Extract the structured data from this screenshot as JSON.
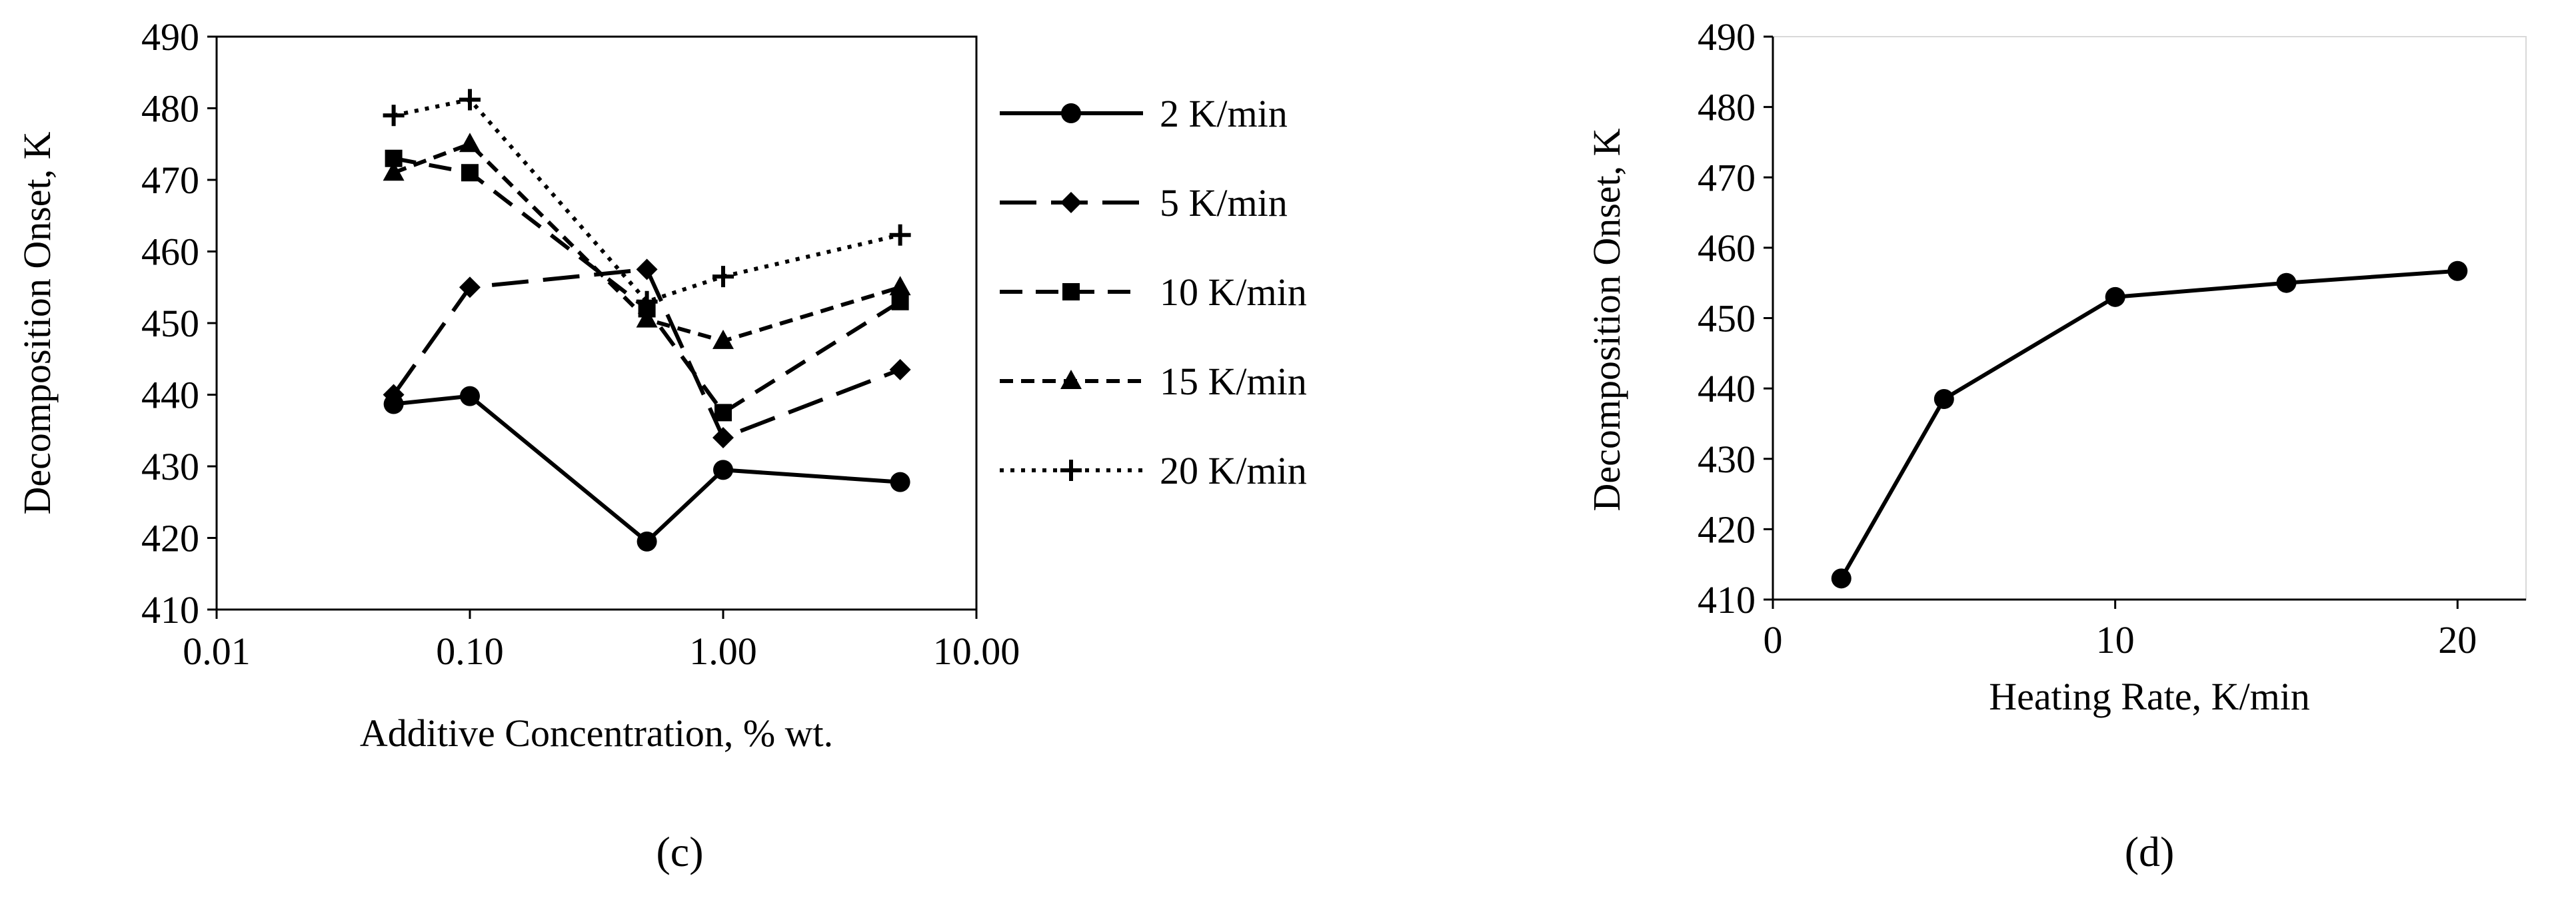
{
  "chart_data": [
    {
      "type": "line",
      "panel_label": "(c)",
      "xlabel": "Additive Concentration, % wt.",
      "ylabel": "Decomposition Onset, K",
      "xscale": "log",
      "xlim": [
        0.01,
        10
      ],
      "ylim": [
        410,
        490
      ],
      "xticks": [
        0.01,
        0.1,
        1,
        10
      ],
      "xtick_labels": [
        "0.01",
        "0.10",
        "1.00",
        "10.00"
      ],
      "yticks": [
        410,
        420,
        430,
        440,
        450,
        460,
        470,
        480,
        490
      ],
      "ytick_labels": [
        "410",
        "420",
        "430",
        "440",
        "450",
        "460",
        "470",
        "480",
        "490"
      ],
      "grid": false,
      "legend_position": "right",
      "x": [
        0.05,
        0.1,
        0.5,
        1,
        5
      ],
      "series": [
        {
          "name": "2 K/min",
          "values": [
            438.7,
            439.8,
            419.5,
            429.5,
            427.8
          ],
          "marker": "circle",
          "dash": "solid"
        },
        {
          "name": "5 K/min",
          "values": [
            440.0,
            455.0,
            457.5,
            434.0,
            443.5
          ],
          "marker": "diamond",
          "dash": "longdash"
        },
        {
          "name": "10 K/min",
          "values": [
            473.0,
            471.0,
            452.0,
            437.5,
            453.0
          ],
          "marker": "square",
          "dash": "dash"
        },
        {
          "name": "15 K/min",
          "values": [
            471.0,
            475.0,
            450.5,
            447.5,
            455.0
          ],
          "marker": "triangle",
          "dash": "shortdash"
        },
        {
          "name": "20 K/min",
          "values": [
            479.0,
            481.2,
            453.0,
            456.5,
            462.3
          ],
          "marker": "plus",
          "dash": "dot"
        }
      ]
    },
    {
      "type": "line",
      "panel_label": "(d)",
      "xlabel": "Heating Rate, K/min",
      "ylabel": "Decomposition Onset, K",
      "xlim": [
        0,
        22
      ],
      "ylim": [
        410,
        490
      ],
      "xticks": [
        0,
        10,
        20
      ],
      "xtick_labels": [
        "0",
        "10",
        "20"
      ],
      "yticks": [
        410,
        420,
        430,
        440,
        450,
        460,
        470,
        480,
        490
      ],
      "ytick_labels": [
        "410",
        "420",
        "430",
        "440",
        "450",
        "460",
        "470",
        "480",
        "490"
      ],
      "grid": false,
      "series": [
        {
          "x": [
            2,
            5,
            10,
            15,
            20
          ],
          "values": [
            413.0,
            438.5,
            453.0,
            455.0,
            456.7
          ],
          "marker": "circle",
          "dash": "solid"
        }
      ]
    }
  ]
}
